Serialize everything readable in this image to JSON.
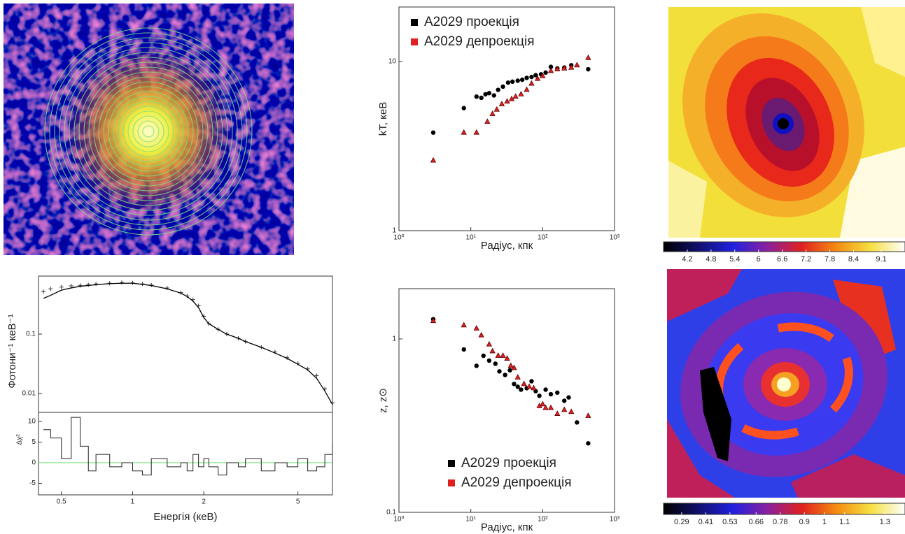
{
  "chart_data": [
    {
      "type": "spectrum",
      "xlabel": "Енергія (кеВ)",
      "ylabel": "Фотони⁻¹ кеВ⁻¹",
      "residual_label": "Δχ²",
      "log_x": true,
      "log_y": true,
      "xlim": [
        0.4,
        7
      ],
      "xticks": [
        0.5,
        1,
        2,
        5
      ],
      "ylim": [
        0.0048,
        0.95
      ],
      "yticks": [
        0.01,
        0.1
      ],
      "residual_ylim": [
        -7.8,
        12.2
      ],
      "residual_yticks": [
        -5,
        0,
        5,
        10
      ],
      "x": [
        0.42,
        0.45,
        0.5,
        0.55,
        0.6,
        0.65,
        0.7,
        0.8,
        0.9,
        1.0,
        1.1,
        1.2,
        1.4,
        1.6,
        1.7,
        1.8,
        1.9,
        2.0,
        2.1,
        2.3,
        2.5,
        2.8,
        3.0,
        3.5,
        4.0,
        4.5,
        5.0,
        5.5,
        6.0,
        6.5,
        7.0
      ],
      "values": [
        0.52,
        0.58,
        0.62,
        0.65,
        0.66,
        0.68,
        0.7,
        0.72,
        0.74,
        0.73,
        0.7,
        0.67,
        0.6,
        0.5,
        0.44,
        0.38,
        0.3,
        0.2,
        0.15,
        0.12,
        0.1,
        0.085,
        0.075,
        0.06,
        0.05,
        0.04,
        0.032,
        0.026,
        0.02,
        0.012,
        0.007
      ],
      "model": [
        0.4,
        0.45,
        0.55,
        0.6,
        0.64,
        0.66,
        0.68,
        0.71,
        0.72,
        0.72,
        0.69,
        0.66,
        0.58,
        0.49,
        0.43,
        0.36,
        0.28,
        0.19,
        0.15,
        0.12,
        0.1,
        0.085,
        0.075,
        0.06,
        0.048,
        0.039,
        0.031,
        0.025,
        0.018,
        0.011,
        0.0065
      ],
      "residuals": [
        8,
        6,
        1,
        11,
        4,
        -2,
        2,
        -1,
        0,
        -2,
        -3,
        1,
        -1,
        0,
        -2,
        2,
        -1,
        1,
        -1,
        -3,
        0,
        -1,
        1,
        -2,
        0,
        -1,
        1,
        -2,
        -1,
        2,
        5
      ],
      "color": "#333333",
      "zero_line_color": "#66dd66"
    },
    {
      "type": "scatter",
      "xlabel": "Радіус, кпк",
      "ylabel": "kT, кеВ",
      "log_x": true,
      "log_y": true,
      "xlim": [
        1,
        1000
      ],
      "xticks": [
        {
          "value": 1,
          "label": "10⁰"
        },
        {
          "value": 10,
          "label": "10¹"
        },
        {
          "value": 100,
          "label": "10²"
        },
        {
          "value": 1000,
          "label": "10³"
        }
      ],
      "ylim": [
        1,
        21
      ],
      "yticks": [
        1,
        10
      ],
      "legend": "upper left",
      "series": [
        {
          "name": "A2029 проекція",
          "color": "#000000",
          "marker": "circle",
          "x": [
            3,
            8,
            12,
            14,
            16,
            18,
            21,
            24,
            28,
            33,
            38,
            45,
            52,
            60,
            70,
            80,
            95,
            110,
            130,
            160,
            200,
            250,
            430
          ],
          "values": [
            3.8,
            5.3,
            6.2,
            6.1,
            6.4,
            6.5,
            6.3,
            6.8,
            7.1,
            7.5,
            7.6,
            7.7,
            7.8,
            8.0,
            8.1,
            8.3,
            8.4,
            8.6,
            9.3,
            9.1,
            9.2,
            9.5,
            9.0
          ]
        },
        {
          "name": "A2029 депроекція",
          "color": "#e02020",
          "marker": "triangle",
          "x": [
            3,
            8,
            12,
            17,
            20,
            23,
            27,
            32,
            37,
            42,
            50,
            60,
            70,
            85,
            100,
            130,
            160,
            200,
            250,
            300,
            430
          ],
          "values": [
            2.6,
            3.8,
            3.8,
            4.4,
            4.9,
            5.2,
            5.6,
            5.8,
            6.0,
            6.2,
            6.4,
            6.8,
            7.4,
            7.9,
            8.2,
            8.8,
            9.0,
            9.1,
            9.2,
            9.5,
            10.5
          ]
        }
      ]
    },
    {
      "type": "scatter",
      "xlabel": "Радіус, кпк",
      "ylabel": "z, z⊙",
      "log_x": true,
      "log_y": true,
      "xlim": [
        1,
        1000
      ],
      "xticks": [
        {
          "value": 1,
          "label": "10⁰"
        },
        {
          "value": 10,
          "label": "10¹"
        },
        {
          "value": 100,
          "label": "10²"
        },
        {
          "value": 1000,
          "label": "10³"
        }
      ],
      "ylim": [
        0.1,
        1.95
      ],
      "yticks": [
        0.1,
        1
      ],
      "legend": "lower center",
      "series": [
        {
          "name": "A2029 проекція",
          "color": "#000000",
          "marker": "circle",
          "x": [
            3,
            8,
            12,
            15,
            18,
            22,
            25,
            30,
            35,
            40,
            45,
            50,
            60,
            70,
            80,
            90,
            110,
            130,
            160,
            200,
            230,
            300,
            430
          ],
          "values": [
            1.3,
            0.87,
            0.7,
            0.8,
            0.75,
            0.72,
            0.65,
            0.62,
            0.66,
            0.55,
            0.53,
            0.51,
            0.52,
            0.57,
            0.5,
            0.47,
            0.51,
            0.48,
            0.49,
            0.44,
            0.46,
            0.33,
            0.25
          ]
        },
        {
          "name": "A2029 депроекція",
          "color": "#e02020",
          "marker": "triangle",
          "x": [
            3,
            8,
            12,
            14,
            18,
            20,
            24,
            28,
            32,
            36,
            40,
            45,
            55,
            65,
            75,
            90,
            100,
            110,
            130,
            160,
            200,
            250,
            430
          ],
          "values": [
            1.27,
            1.2,
            1.15,
            1.05,
            0.93,
            0.85,
            0.8,
            0.8,
            0.77,
            0.7,
            0.68,
            0.6,
            0.55,
            0.53,
            0.52,
            0.41,
            0.42,
            0.4,
            0.4,
            0.37,
            0.39,
            0.38,
            0.36
          ]
        }
      ]
    },
    {
      "type": "colorbar",
      "clim": [
        3.6,
        9.7
      ],
      "ticks": [
        4.2,
        4.8,
        5.4,
        6,
        6.6,
        7.2,
        7.8,
        8.4,
        9.1
      ],
      "colors": [
        "#000000",
        "#10106a",
        "#2020e0",
        "#8a20a0",
        "#e02020",
        "#f58a10",
        "#f5e040",
        "#ffffff"
      ]
    },
    {
      "type": "colorbar",
      "clim": [
        0.2,
        1.4
      ],
      "ticks": [
        0.29,
        0.41,
        0.53,
        0.66,
        0.78,
        0.9,
        1,
        1.1,
        1.3
      ],
      "colors": [
        "#000000",
        "#10106a",
        "#2020e0",
        "#8a20a0",
        "#e02020",
        "#f58a10",
        "#f5e040",
        "#ffffff"
      ]
    }
  ]
}
